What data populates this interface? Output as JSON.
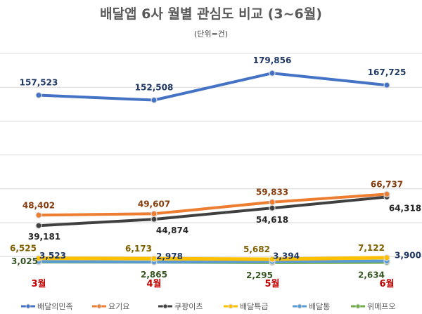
{
  "chart_data": {
    "type": "line",
    "title": "배달앱 6사 월별 관심도 비교 (3~6월)",
    "subtitle": "(단위=건)",
    "categories": [
      "3월",
      "4월",
      "5월",
      "6월"
    ],
    "grid": true,
    "legend_position": "bottom",
    "series": [
      {
        "name": "배달의민족",
        "color": "#4472c4",
        "values": [
          157523,
          152508,
          179856,
          167725
        ],
        "labels": [
          "157,523",
          "152,508",
          "179,856",
          "167,725"
        ]
      },
      {
        "name": "요기요",
        "color": "#ed7d31",
        "values": [
          48402,
          49607,
          59833,
          66737
        ],
        "labels": [
          "48,402",
          "49,607",
          "59,833",
          "66,737"
        ]
      },
      {
        "name": "쿠팡이츠",
        "color": "#404040",
        "values": [
          39181,
          44874,
          54618,
          64318
        ],
        "labels": [
          "39,181",
          "44,874",
          "54,618",
          "64,318"
        ]
      },
      {
        "name": "배달특급",
        "color": "#ffc000",
        "values": [
          6525,
          6173,
          5682,
          7122
        ],
        "labels": [
          "6,525",
          "6,173",
          "5,682",
          "7,122"
        ]
      },
      {
        "name": "배달통",
        "color": "#5b9bd5",
        "values": [
          3523,
          2978,
          3394,
          3900
        ],
        "labels": [
          "3,523",
          "2,978",
          "3,394",
          "3,900"
        ]
      },
      {
        "name": "위메프오",
        "color": "#70ad47",
        "values": [
          3025,
          2865,
          2295,
          2634
        ],
        "labels": [
          "3,025",
          "2,865",
          "2,295",
          "2,634"
        ]
      }
    ]
  }
}
